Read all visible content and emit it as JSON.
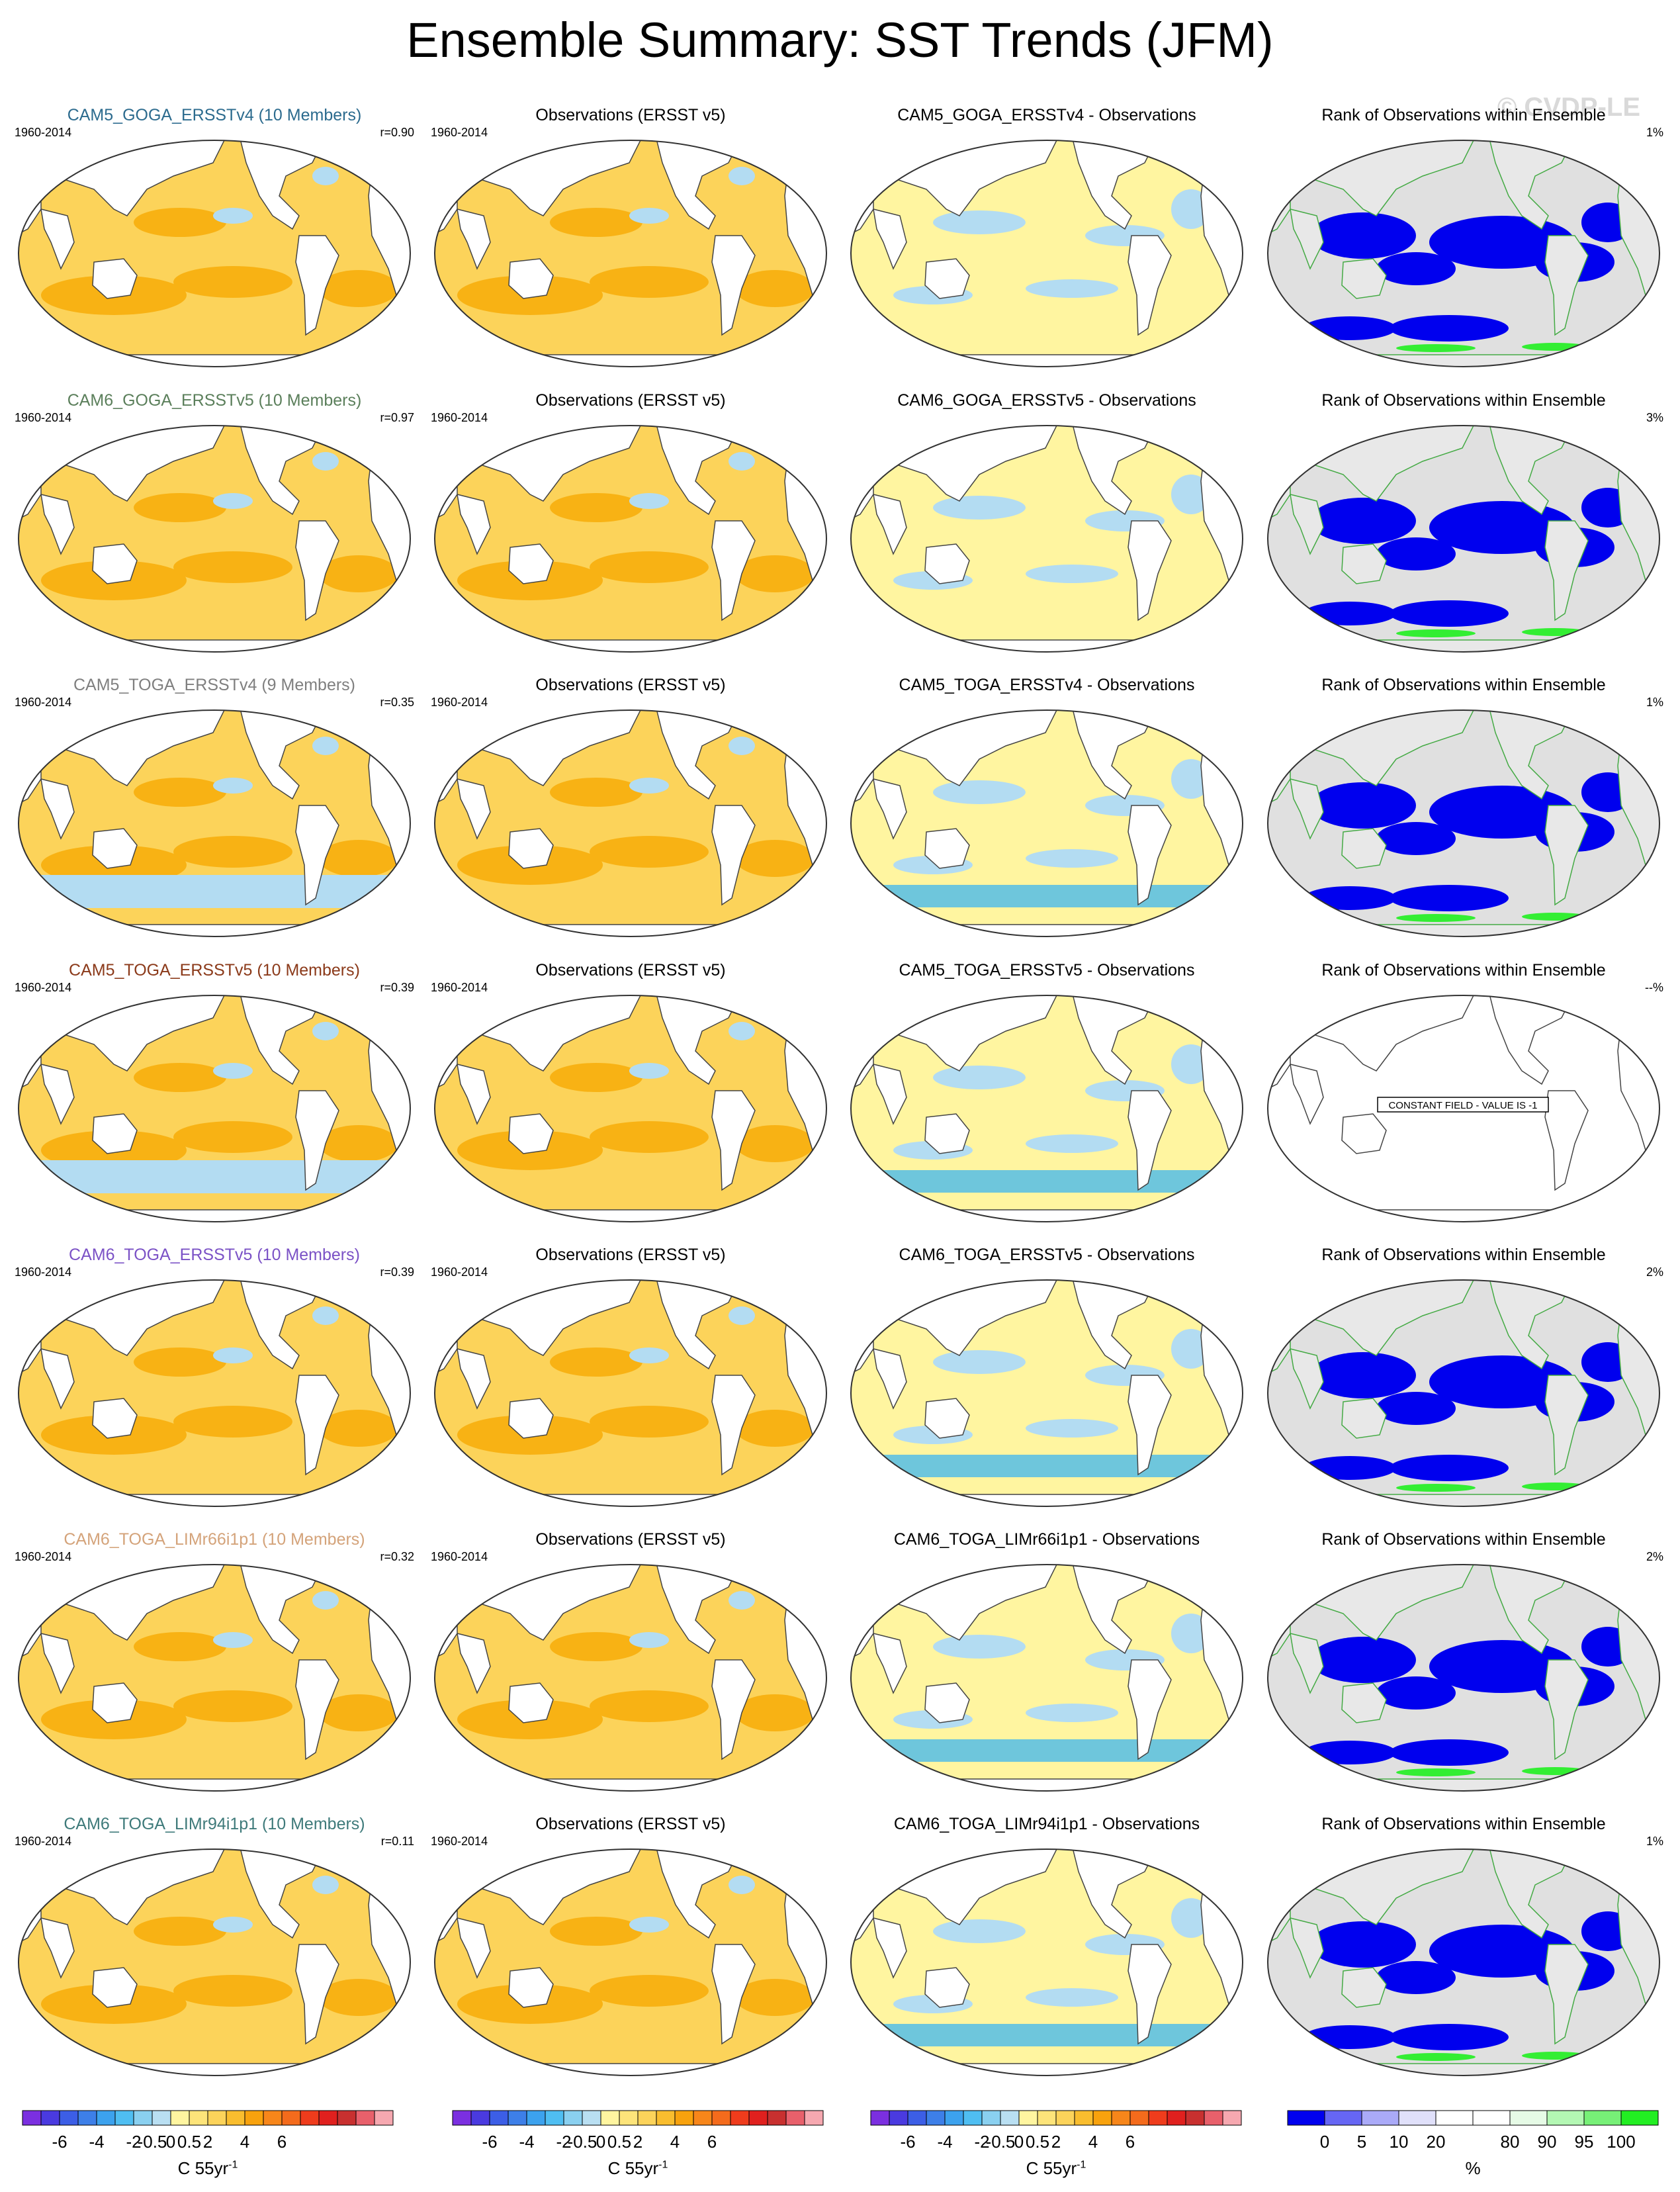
{
  "title": "Ensemble Summary: SST Trends (JFM)",
  "watermark": "© CVDP-LE",
  "colors": {
    "ocean_orange": "#f8b214",
    "ocean_light_orange": "#fcd35a",
    "ocean_yellow": "#fff5a0",
    "ocean_light_blue": "#b3dcf2",
    "ocean_blue": "#3db5f0",
    "rank_blue": "#0000ee",
    "rank_green": "#33ee33",
    "rank_gray": "#e0e0e0"
  },
  "rows": [
    {
      "model": {
        "title": "CAM5_GOGA_ERSSTv4 (10 Members)",
        "title_color": "#2c6b8e",
        "years": "1960-2014",
        "stat": "r=0.90"
      },
      "obs": {
        "title": "Observations (ERSST v5)",
        "years": "1960-2014"
      },
      "diff": {
        "title": "CAM5_GOGA_ERSSTv4 - Observations"
      },
      "rank": {
        "title": "Rank of Observations within Ensemble",
        "stat": "1%"
      }
    },
    {
      "model": {
        "title": "CAM6_GOGA_ERSSTv5 (10 Members)",
        "title_color": "#5b7f5b",
        "years": "1960-2014",
        "stat": "r=0.97"
      },
      "obs": {
        "title": "Observations (ERSST v5)",
        "years": "1960-2014"
      },
      "diff": {
        "title": "CAM6_GOGA_ERSSTv5 - Observations"
      },
      "rank": {
        "title": "Rank of Observations within Ensemble",
        "stat": "3%"
      }
    },
    {
      "model": {
        "title": "CAM5_TOGA_ERSSTv4 (9 Members)",
        "title_color": "#7f7f7f",
        "years": "1960-2014",
        "stat": "r=0.35"
      },
      "obs": {
        "title": "Observations (ERSST v5)",
        "years": "1960-2014"
      },
      "diff": {
        "title": "CAM5_TOGA_ERSSTv4 - Observations"
      },
      "rank": {
        "title": "Rank of Observations within Ensemble",
        "stat": "1%"
      }
    },
    {
      "model": {
        "title": "CAM5_TOGA_ERSSTv5 (10 Members)",
        "title_color": "#8b3a1a",
        "years": "1960-2014",
        "stat": "r=0.39"
      },
      "obs": {
        "title": "Observations (ERSST v5)",
        "years": "1960-2014"
      },
      "diff": {
        "title": "CAM5_TOGA_ERSSTv5 - Observations"
      },
      "rank": {
        "title": "Rank of Observations within Ensemble",
        "stat": "--%",
        "note": "CONSTANT FIELD - VALUE IS -1"
      }
    },
    {
      "model": {
        "title": "CAM6_TOGA_ERSSTv5 (10 Members)",
        "title_color": "#7b52c6",
        "years": "1960-2014",
        "stat": "r=0.39"
      },
      "obs": {
        "title": "Observations (ERSST v5)",
        "years": "1960-2014"
      },
      "diff": {
        "title": "CAM6_TOGA_ERSSTv5 - Observations"
      },
      "rank": {
        "title": "Rank of Observations within Ensemble",
        "stat": "2%"
      }
    },
    {
      "model": {
        "title": "CAM6_TOGA_LIMr66i1p1 (10 Members)",
        "title_color": "#d4a37a",
        "years": "1960-2014",
        "stat": "r=0.32"
      },
      "obs": {
        "title": "Observations (ERSST v5)",
        "years": "1960-2014"
      },
      "diff": {
        "title": "CAM6_TOGA_LIMr66i1p1 - Observations"
      },
      "rank": {
        "title": "Rank of Observations within Ensemble",
        "stat": "2%"
      }
    },
    {
      "model": {
        "title": "CAM6_TOGA_LIMr94i1p1 (10 Members)",
        "title_color": "#3e7a7a",
        "years": "1960-2014",
        "stat": "r=0.11"
      },
      "obs": {
        "title": "Observations (ERSST v5)",
        "years": "1960-2014"
      },
      "diff": {
        "title": "CAM6_TOGA_LIMr94i1p1 - Observations"
      },
      "rank": {
        "title": "Rank of Observations within Ensemble",
        "stat": "1%"
      }
    }
  ],
  "sst_colorbar": {
    "label": "C 55yr",
    "label_sup": "-1",
    "colors": [
      "#7b2fe0",
      "#4a3ae0",
      "#3c5ee6",
      "#3d7fe8",
      "#3ca2ee",
      "#4fbef2",
      "#8ad0f0",
      "#b9dff2",
      "#fff5a0",
      "#fde47a",
      "#fcd35a",
      "#f9bd2e",
      "#f8a20d",
      "#f7861a",
      "#f46b1c",
      "#ef3c1c",
      "#e0201e",
      "#c8302f",
      "#e8606b",
      "#f6a8b0"
    ],
    "ticks": [
      "-6",
      "-4",
      "-2",
      "-0.5",
      "0",
      "0.5",
      "2",
      "4",
      "6"
    ]
  },
  "rank_colorbar": {
    "label": "%",
    "colors": [
      "#0000ee",
      "#6666f4",
      "#aaaaf8",
      "#e0e0fa",
      "#ffffff",
      "#ffffff",
      "#e6fbe6",
      "#b3f7b3",
      "#77f077",
      "#22ee22"
    ],
    "ticks": [
      "0",
      "5",
      "10",
      "20",
      "80",
      "90",
      "95",
      "100"
    ]
  }
}
